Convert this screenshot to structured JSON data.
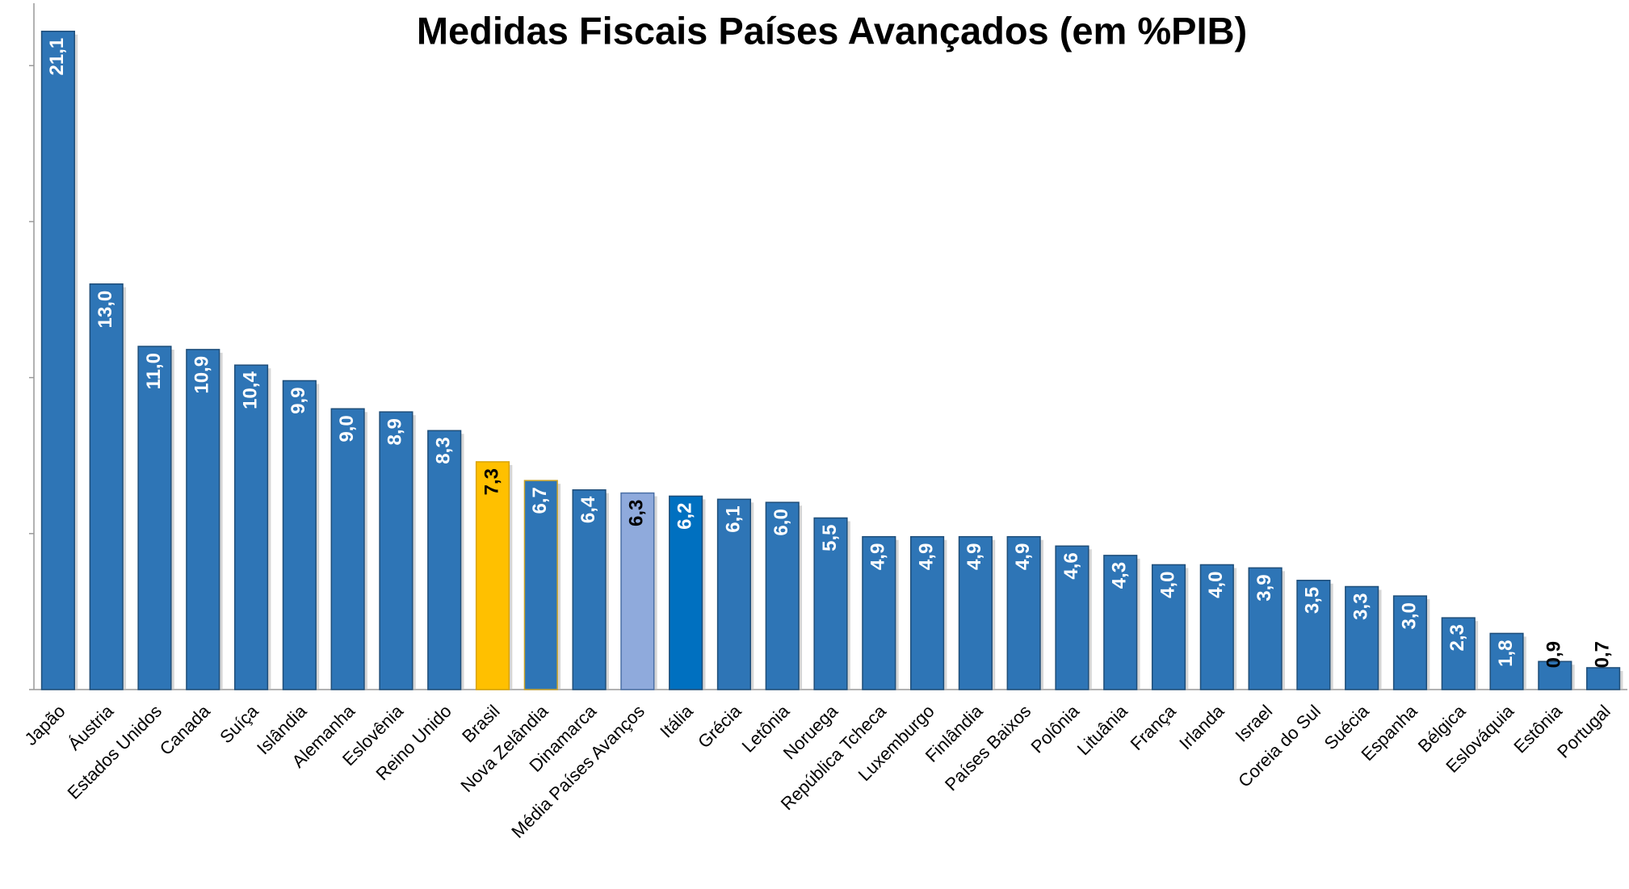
{
  "chart_data": {
    "type": "bar",
    "title": "Medidas Fiscais Países Avançados (em %PIB)",
    "categories": [
      "Japão",
      "Áustria",
      "Estados Unidos",
      "Canada",
      "Suíça",
      "Islândia",
      "Alemanha",
      "Eslovênia",
      "Reino Unido",
      "Brasil",
      "Nova Zelândia",
      "Dinamarca",
      "Média Países Avanços",
      "Itália",
      "Grécia",
      "Letônia",
      "Noruega",
      "República Tcheca",
      "Luxemburgo",
      "Finlândia",
      "Países Baixos",
      "Polônia",
      "Lituânia",
      "França",
      "Irlanda",
      "Israel",
      "Coreia do Sul",
      "Suécia",
      "Espanha",
      "Bélgica",
      "Eslováquia",
      "Estônia",
      "Portugal"
    ],
    "values": [
      21.1,
      13.0,
      11.0,
      10.9,
      10.4,
      9.9,
      9.0,
      8.9,
      8.3,
      7.3,
      6.7,
      6.4,
      6.3,
      6.2,
      6.1,
      6.0,
      5.5,
      4.9,
      4.9,
      4.9,
      4.9,
      4.6,
      4.3,
      4.0,
      4.0,
      3.9,
      3.5,
      3.3,
      3.0,
      2.3,
      1.8,
      0.9,
      0.7
    ],
    "value_labels": [
      "21,1",
      "13,0",
      "11,0",
      "10,9",
      "10,4",
      "9,9",
      "9,0",
      "8,9",
      "8,3",
      "7,3",
      "6,7",
      "6,4",
      "6,3",
      "6,2",
      "6,1",
      "6,0",
      "5,5",
      "4,9",
      "4,9",
      "4,9",
      "4,9",
      "4,6",
      "4,3",
      "4,0",
      "4,0",
      "3,9",
      "3,5",
      "3,3",
      "3,0",
      "2,3",
      "1,8",
      "0,9",
      "0,7"
    ],
    "colors": [
      "#2e75b6",
      "#2e75b6",
      "#2e75b6",
      "#2e75b6",
      "#2e75b6",
      "#2e75b6",
      "#2e75b6",
      "#2e75b6",
      "#2e75b6",
      "#ffc000",
      "#2e75b6",
      "#2e75b6",
      "#8faadc",
      "#0070c0",
      "#2e75b6",
      "#2e75b6",
      "#2e75b6",
      "#2e75b6",
      "#2e75b6",
      "#2e75b6",
      "#2e75b6",
      "#2e75b6",
      "#2e75b6",
      "#2e75b6",
      "#2e75b6",
      "#2e75b6",
      "#2e75b6",
      "#2e75b6",
      "#2e75b6",
      "#2e75b6",
      "#2e75b6",
      "#2e75b6",
      "#2e75b6"
    ],
    "edge_colors": [
      "#1f4e79",
      "#1f4e79",
      "#1f4e79",
      "#1f4e79",
      "#1f4e79",
      "#1f4e79",
      "#1f4e79",
      "#1f4e79",
      "#1f4e79",
      "#d9a300",
      "#c9a227",
      "#1f4e79",
      "#4a6fa5",
      "#1f4e79",
      "#1f4e79",
      "#1f4e79",
      "#1f4e79",
      "#1f4e79",
      "#1f4e79",
      "#1f4e79",
      "#1f4e79",
      "#1f4e79",
      "#1f4e79",
      "#1f4e79",
      "#1f4e79",
      "#1f4e79",
      "#1f4e79",
      "#1f4e79",
      "#1f4e79",
      "#1f4e79",
      "#1f4e79",
      "#1f4e79",
      "#1f4e79"
    ],
    "label_colors": [
      "#ffffff",
      "#ffffff",
      "#ffffff",
      "#ffffff",
      "#ffffff",
      "#ffffff",
      "#ffffff",
      "#ffffff",
      "#ffffff",
      "#000000",
      "#ffffff",
      "#ffffff",
      "#000000",
      "#ffffff",
      "#ffffff",
      "#ffffff",
      "#ffffff",
      "#ffffff",
      "#ffffff",
      "#ffffff",
      "#ffffff",
      "#ffffff",
      "#ffffff",
      "#ffffff",
      "#ffffff",
      "#ffffff",
      "#ffffff",
      "#ffffff",
      "#ffffff",
      "#ffffff",
      "#ffffff",
      "#000000",
      "#000000"
    ],
    "ylim": [
      0,
      22
    ],
    "yticks": [
      0,
      5,
      10,
      15,
      20
    ],
    "grid": false
  }
}
